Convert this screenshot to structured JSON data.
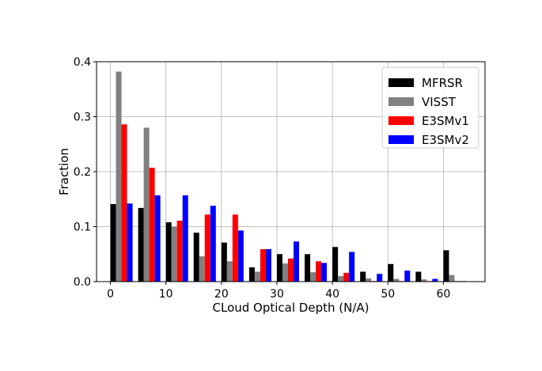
{
  "chart_data": {
    "type": "bar",
    "title": "",
    "xlabel": "CLoud Optical Depth (N/A)",
    "ylabel": "Fraction",
    "xlim": [
      -2.5,
      67.5
    ],
    "ylim": [
      0,
      0.4
    ],
    "xticks": [
      0,
      10,
      20,
      30,
      40,
      50,
      60
    ],
    "yticks": [
      0.0,
      0.1,
      0.2,
      0.3,
      0.4
    ],
    "xtick_labels": [
      "0",
      "10",
      "20",
      "30",
      "40",
      "50",
      "60"
    ],
    "ytick_labels": [
      "0.0",
      "0.1",
      "0.2",
      "0.3",
      "0.4"
    ],
    "grid": true,
    "legend_position": "top-right",
    "bin_starts": [
      0,
      5,
      10,
      15,
      20,
      25,
      30,
      35,
      40,
      45,
      50,
      55,
      60
    ],
    "bin_width": 5,
    "series": [
      {
        "name": "MFRSR",
        "color": "#000000",
        "values": [
          0.141,
          0.134,
          0.108,
          0.089,
          0.071,
          0.026,
          0.05,
          0.05,
          0.063,
          0.018,
          0.032,
          0.018,
          0.057
        ]
      },
      {
        "name": "VISST",
        "color": "#808080",
        "values": [
          0.382,
          0.28,
          0.1,
          0.046,
          0.037,
          0.018,
          0.033,
          0.017,
          0.01,
          0.006,
          0.005,
          0.004,
          0.012
        ]
      },
      {
        "name": "E3SMv1",
        "color": "#ff0000",
        "values": [
          0.286,
          0.207,
          0.111,
          0.122,
          0.122,
          0.059,
          0.042,
          0.037,
          0.016,
          0.001,
          0.001,
          0.001,
          0.001
        ]
      },
      {
        "name": "E3SMv2",
        "color": "#0000ff",
        "values": [
          0.142,
          0.157,
          0.157,
          0.138,
          0.093,
          0.059,
          0.073,
          0.034,
          0.054,
          0.014,
          0.02,
          0.005,
          0.001
        ]
      }
    ]
  }
}
